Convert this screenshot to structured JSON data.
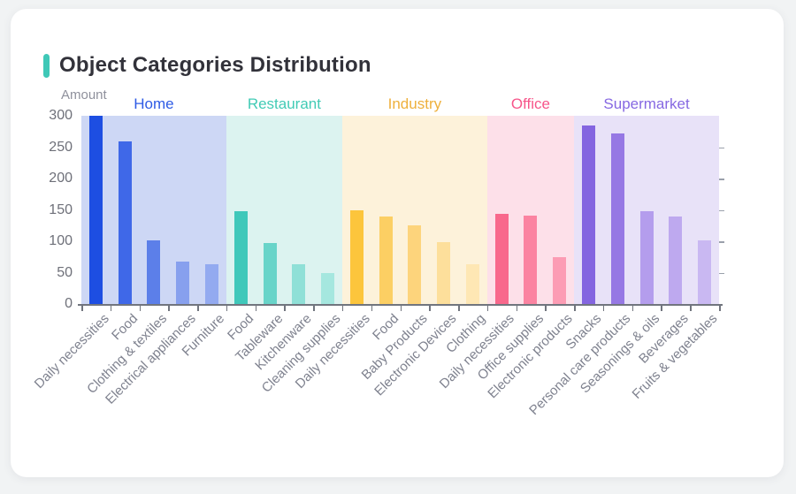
{
  "page": {
    "background_color": "#f1f3f4",
    "card_background": "#ffffff"
  },
  "header": {
    "title": "Object Categories Distribution",
    "accent_color": "#3fc8b7",
    "title_color": "#32323a"
  },
  "chart_data": {
    "type": "bar",
    "title": "Object Categories Distribution",
    "xlabel": "",
    "ylabel": "Amount",
    "ylim": [
      0,
      300
    ],
    "yticks": [
      0,
      50,
      100,
      150,
      200,
      250,
      300
    ],
    "grid": false,
    "legend_position": "none",
    "axis_color": "#71757e",
    "ytick_label_color": "#6e7079",
    "xtick_label_color": "#7f828f",
    "xtick_label_rotation_deg": 45,
    "groups": [
      {
        "name": "Home",
        "label_color": "#2e5be5",
        "band_color": "#cdd7f5",
        "categories": [
          "Daily necessities",
          "Food",
          "Clothing & textiles",
          "Electrical appliances",
          "Furniture"
        ],
        "values": [
          300,
          259,
          102,
          68,
          63
        ],
        "bar_colors": [
          "#1d4ee2",
          "#3f68e8",
          "#5c7fe9",
          "#87a0ee",
          "#93aaf0"
        ]
      },
      {
        "name": "Restaurant",
        "label_color": "#41cbb5",
        "band_color": "#dcf3f0",
        "categories": [
          "Food",
          "Tableware",
          "Kitchenware",
          "Cleaning supplies"
        ],
        "values": [
          148,
          97,
          64,
          50
        ],
        "bar_colors": [
          "#3fc8ba",
          "#68d4c9",
          "#8fe0d7",
          "#a5e7df"
        ]
      },
      {
        "name": "Industry",
        "label_color": "#eeb03c",
        "band_color": "#fdf2da",
        "categories": [
          "Daily necessities",
          "Food",
          "Baby Products",
          "Electronic Devices",
          "Clothing"
        ],
        "values": [
          150,
          139,
          125,
          98,
          63
        ],
        "bar_colors": [
          "#fcc53c",
          "#fccf63",
          "#fdd47c",
          "#fddf9b",
          "#fee7b4"
        ]
      },
      {
        "name": "Office",
        "label_color": "#f7558a",
        "band_color": "#fde0e9",
        "categories": [
          "Daily necessities",
          "Office supplies",
          "Electronic products"
        ],
        "values": [
          144,
          141,
          75
        ],
        "bar_colors": [
          "#f8688c",
          "#fb83a1",
          "#fc9cb4"
        ]
      },
      {
        "name": "Supermarket",
        "label_color": "#8668e2",
        "band_color": "#e8e2f8",
        "categories": [
          "Snacks",
          "Personal care products",
          "Seasonings & oils",
          "Beverages",
          "Fruits & vegetables"
        ],
        "values": [
          285,
          272,
          148,
          140,
          101
        ],
        "bar_colors": [
          "#8465e0",
          "#9678e4",
          "#b49ded",
          "#bea9ef",
          "#c9b8f2"
        ]
      }
    ]
  }
}
